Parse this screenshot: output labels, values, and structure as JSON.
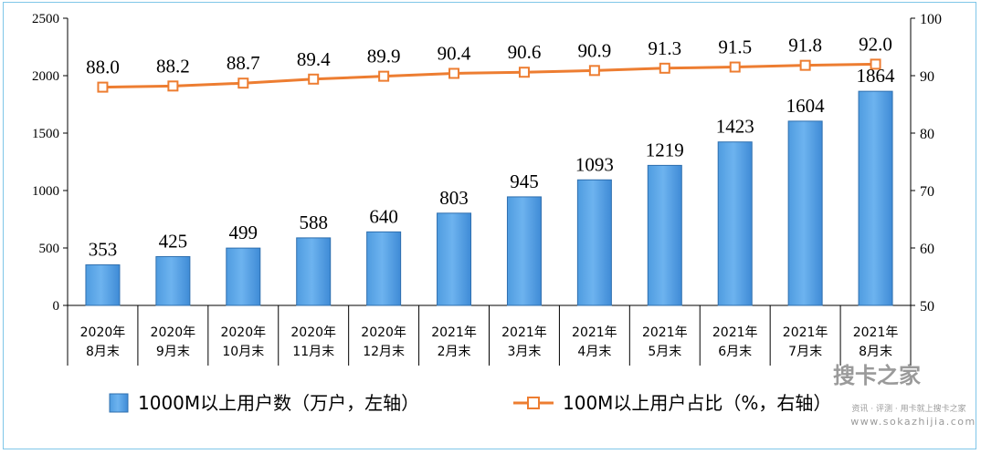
{
  "chart_data": {
    "type": "bar+line",
    "categories": [
      [
        "2020年",
        "8月末"
      ],
      [
        "2020年",
        "9月末"
      ],
      [
        "2020年",
        "10月末"
      ],
      [
        "2020年",
        "11月末"
      ],
      [
        "2020年",
        "12月末"
      ],
      [
        "2021年",
        "2月末"
      ],
      [
        "2021年",
        "3月末"
      ],
      [
        "2021年",
        "4月末"
      ],
      [
        "2021年",
        "5月末"
      ],
      [
        "2021年",
        "6月末"
      ],
      [
        "2021年",
        "7月末"
      ],
      [
        "2021年",
        "8月末"
      ]
    ],
    "series": [
      {
        "name": "1000M以上用户数（万户，左轴）",
        "type": "bar",
        "axis": "left",
        "color": "#5aa5e6",
        "values": [
          353,
          425,
          499,
          588,
          640,
          803,
          945,
          1093,
          1219,
          1423,
          1604,
          1864
        ],
        "labels": [
          "353",
          "425",
          "499",
          "588",
          "640",
          "803",
          "945",
          "1093",
          "1219",
          "1423",
          "1604",
          "1864"
        ]
      },
      {
        "name": "100M以上用户占比（%，右轴）",
        "type": "line",
        "axis": "right",
        "color": "#ed7d31",
        "values": [
          88.0,
          88.2,
          88.7,
          89.4,
          89.9,
          90.4,
          90.6,
          90.9,
          91.3,
          91.5,
          91.8,
          92.0
        ],
        "labels": [
          "88.0",
          "88.2",
          "88.7",
          "89.4",
          "89.9",
          "90.4",
          "90.6",
          "90.9",
          "91.3",
          "91.5",
          "91.8",
          "92.0"
        ]
      }
    ],
    "left_axis": {
      "ylim": [
        0,
        2500
      ],
      "ticks": [
        "0",
        "500",
        "1000",
        "1500",
        "2000",
        "2500"
      ]
    },
    "right_axis": {
      "ylim": [
        50,
        100
      ],
      "ticks": [
        "50",
        "60",
        "70",
        "80",
        "90",
        "100"
      ]
    },
    "legend_position": "bottom",
    "grid": false
  },
  "watermark": {
    "logo_text": "搜卡之家",
    "tagline": "资讯 · 评测 · 用卡就上搜卡之家",
    "url": "www.sokazhijia.com"
  }
}
